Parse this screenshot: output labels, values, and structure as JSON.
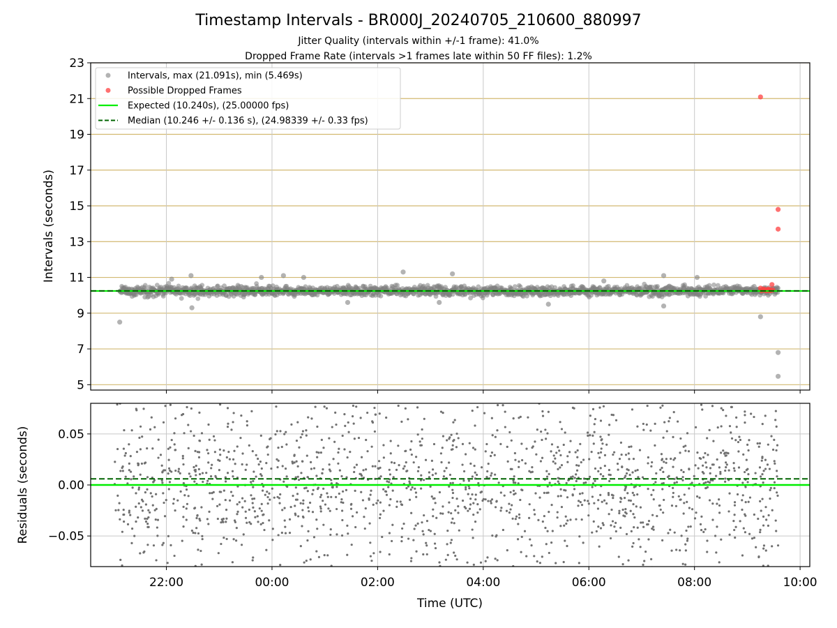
{
  "title": "Timestamp Intervals - BR000J_20240705_210600_880997",
  "subtitle_1": "Jitter Quality (intervals within +/-1 frame): 41.0%",
  "subtitle_2": "Dropped Frame Rate (intervals >1 frames late within 50 FF files): 1.2%",
  "colors": {
    "points": "#808080",
    "dropped": "#ff4040",
    "expected": "#00ee00",
    "median": "#006400",
    "hgrid": "#d2b970",
    "vgrid": "#c8c8c8"
  },
  "chart_data": [
    {
      "type": "scatter",
      "panel": "intervals",
      "ylabel": "Intervals (seconds)",
      "ylim": [
        4.7,
        23
      ],
      "yticks": [
        5,
        7,
        9,
        11,
        13,
        15,
        17,
        19,
        21,
        23
      ],
      "xlim": [
        "2024-07-05T20:34",
        "2024-07-06T10:11"
      ],
      "grid": true,
      "legend_position": "upper-left",
      "legend": [
        {
          "label": "Intervals, max (21.091s), min (5.469s)",
          "kind": "gray-point"
        },
        {
          "label": "Possible Dropped Frames",
          "kind": "red-point"
        },
        {
          "label": "Expected (10.240s), (25.00000 fps)",
          "kind": "green-line"
        },
        {
          "label": "Median (10.246 +/- 0.136 s), (24.98339 +/- 0.33 fps)",
          "kind": "dark-green-dashed"
        }
      ],
      "expected_line": 10.24,
      "median_line": 10.246,
      "median_sd": 0.136,
      "interval_band": {
        "x_start": "2024-07-05T21:07",
        "x_end": "2024-07-06T09:35",
        "center": 10.24,
        "spread": 0.25,
        "n_points": 1600
      },
      "outliers": [
        {
          "x": "2024-07-05T21:07",
          "y": 8.5
        },
        {
          "x": "2024-07-05T22:06",
          "y": 10.9
        },
        {
          "x": "2024-07-05T22:28",
          "y": 11.1
        },
        {
          "x": "2024-07-05T22:29",
          "y": 9.3
        },
        {
          "x": "2024-07-05T23:48",
          "y": 11.0
        },
        {
          "x": "2024-07-06T00:13",
          "y": 11.1
        },
        {
          "x": "2024-07-06T00:36",
          "y": 11.0
        },
        {
          "x": "2024-07-06T01:26",
          "y": 9.6
        },
        {
          "x": "2024-07-06T02:29",
          "y": 11.3
        },
        {
          "x": "2024-07-06T03:10",
          "y": 9.6
        },
        {
          "x": "2024-07-06T03:25",
          "y": 11.2
        },
        {
          "x": "2024-07-06T05:14",
          "y": 9.5
        },
        {
          "x": "2024-07-06T06:17",
          "y": 10.8
        },
        {
          "x": "2024-07-06T07:25",
          "y": 9.4
        },
        {
          "x": "2024-07-06T07:25",
          "y": 11.1
        },
        {
          "x": "2024-07-06T08:03",
          "y": 11.0
        },
        {
          "x": "2024-07-06T09:15",
          "y": 8.8
        },
        {
          "x": "2024-07-06T09:35",
          "y": 6.8
        },
        {
          "x": "2024-07-06T09:35",
          "y": 5.469
        }
      ],
      "dropped_frames": [
        {
          "x": "2024-07-06T09:15",
          "y": 21.091
        },
        {
          "x": "2024-07-06T09:35",
          "y": 14.8
        },
        {
          "x": "2024-07-06T09:35",
          "y": 13.7
        },
        {
          "x": "2024-07-06T09:28",
          "y": 10.6
        },
        {
          "x": "2024-07-06T09:15",
          "y": 10.4
        },
        {
          "x": "2024-07-06T09:16",
          "y": 10.25
        },
        {
          "x": "2024-07-06T09:18",
          "y": 10.3
        },
        {
          "x": "2024-07-06T09:19",
          "y": 10.35
        },
        {
          "x": "2024-07-06T09:21",
          "y": 10.25
        },
        {
          "x": "2024-07-06T09:22",
          "y": 10.3
        },
        {
          "x": "2024-07-06T09:23",
          "y": 10.28
        },
        {
          "x": "2024-07-06T09:24",
          "y": 10.35
        },
        {
          "x": "2024-07-06T09:25",
          "y": 10.25
        },
        {
          "x": "2024-07-06T09:26",
          "y": 10.3
        },
        {
          "x": "2024-07-06T09:27",
          "y": 10.27
        },
        {
          "x": "2024-07-06T09:29",
          "y": 10.3
        }
      ]
    },
    {
      "type": "scatter",
      "panel": "residuals",
      "ylabel": "Residuals (seconds)",
      "xlabel": "Time (UTC)",
      "ylim": [
        -0.08,
        0.08
      ],
      "yticks": [
        0.05,
        0.0,
        -0.05
      ],
      "ytick_labels": [
        "0.05",
        "0.00",
        "−0.05"
      ],
      "xlim": [
        "2024-07-05T20:34",
        "2024-07-06T10:11"
      ],
      "xticks": [
        "2024-07-05T22:00",
        "2024-07-06T00:00",
        "2024-07-06T02:00",
        "2024-07-06T04:00",
        "2024-07-06T06:00",
        "2024-07-06T08:00",
        "2024-07-06T10:00"
      ],
      "xtick_labels": [
        "22:00",
        "00:00",
        "02:00",
        "04:00",
        "06:00",
        "08:00",
        "10:00"
      ],
      "grid": true,
      "expected_line": 0.0,
      "median_line": 0.006,
      "residual_cloud": {
        "x_start": "2024-07-05T21:00",
        "x_end": "2024-07-06T09:35",
        "mean": 0.0,
        "spread": 0.08,
        "n_points": 1600
      }
    }
  ]
}
